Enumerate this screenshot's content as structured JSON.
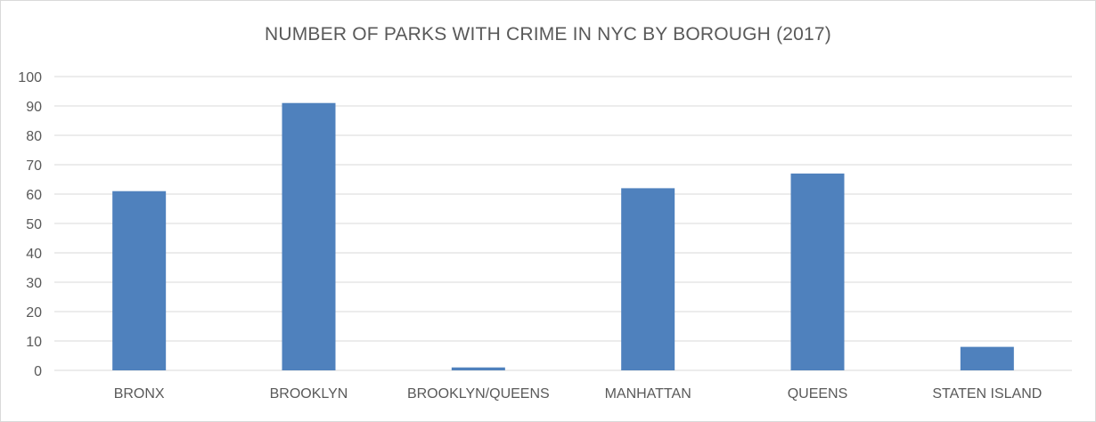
{
  "chart_data": {
    "type": "bar",
    "title": "NUMBER OF PARKS WITH CRIME IN NYC BY BOROUGH (2017)",
    "xlabel": "",
    "ylabel": "",
    "categories": [
      "BRONX",
      "BROOKLYN",
      "BROOKLYN/QUEENS",
      "MANHATTAN",
      "QUEENS",
      "STATEN ISLAND"
    ],
    "values": [
      61,
      91,
      1,
      62,
      67,
      8
    ],
    "ylim": [
      0,
      100
    ],
    "yticks": [
      "0",
      "10",
      "20",
      "30",
      "40",
      "50",
      "60",
      "70",
      "80",
      "90",
      "100"
    ],
    "grid": true,
    "legend": "none",
    "bar_color": "#4f81bd",
    "grid_color": "#d9d9d9",
    "text_color": "#595959"
  }
}
